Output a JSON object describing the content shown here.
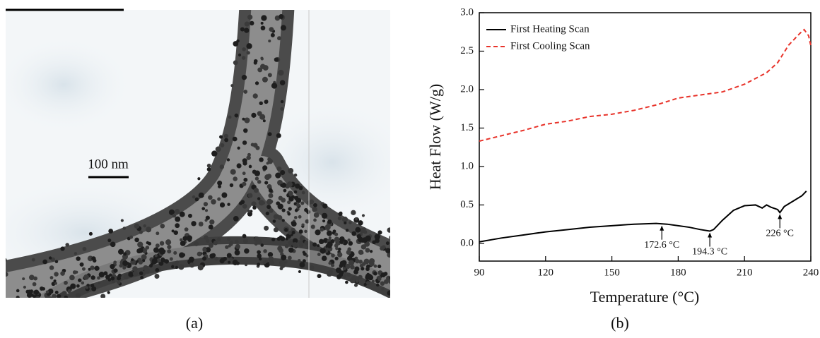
{
  "image_panel": {
    "scale_bar": "100 nm",
    "caption": "(a)"
  },
  "chart_data": {
    "type": "line",
    "caption": "(b)",
    "x_label": "Temperature (°C)",
    "y_label": "Heat Flow (W/g)",
    "xlim": [
      90,
      240
    ],
    "ylim": [
      -0.23,
      3.0
    ],
    "xticks": [
      90,
      120,
      150,
      180,
      210,
      240
    ],
    "yticks": [
      {
        "value": 0,
        "label": "0.0"
      },
      0.5,
      {
        "value": 1,
        "label": "1.0"
      },
      1.5,
      {
        "value": 2,
        "label": "2.0"
      },
      2.5,
      {
        "value": 3,
        "label": "3.0"
      }
    ],
    "legend": "upper left",
    "series": [
      {
        "name": "First Heating Scan",
        "color": "#000000",
        "dashed": false,
        "x": [
          90,
          100,
          110,
          120,
          130,
          140,
          150,
          160,
          170,
          175,
          180,
          185,
          190,
          194.3,
          196,
          200,
          205,
          210,
          215,
          218,
          220,
          222,
          225,
          226,
          228,
          232,
          236,
          238
        ],
        "values": [
          0.02,
          0.07,
          0.11,
          0.15,
          0.18,
          0.21,
          0.23,
          0.25,
          0.26,
          0.25,
          0.23,
          0.21,
          0.18,
          0.16,
          0.18,
          0.3,
          0.43,
          0.49,
          0.5,
          0.46,
          0.5,
          0.47,
          0.44,
          0.4,
          0.48,
          0.55,
          0.62,
          0.68
        ]
      },
      {
        "name": "First Cooling Scan",
        "color": "#e8332a",
        "dashed": true,
        "x": [
          90,
          100,
          110,
          120,
          130,
          140,
          150,
          160,
          170,
          180,
          190,
          200,
          210,
          220,
          225,
          230,
          235,
          237,
          239,
          240
        ],
        "values": [
          1.33,
          1.4,
          1.47,
          1.55,
          1.59,
          1.65,
          1.68,
          1.73,
          1.8,
          1.89,
          1.93,
          1.97,
          2.07,
          2.22,
          2.35,
          2.58,
          2.73,
          2.78,
          2.7,
          2.57
        ]
      }
    ],
    "annotations": [
      {
        "text": "172.6 °C",
        "x": 172.6,
        "y": 0.25
      },
      {
        "text": "194.3 °C",
        "x": 194.3,
        "y": 0.16
      },
      {
        "text": "226 °C",
        "x": 226,
        "y": 0.4
      }
    ]
  }
}
